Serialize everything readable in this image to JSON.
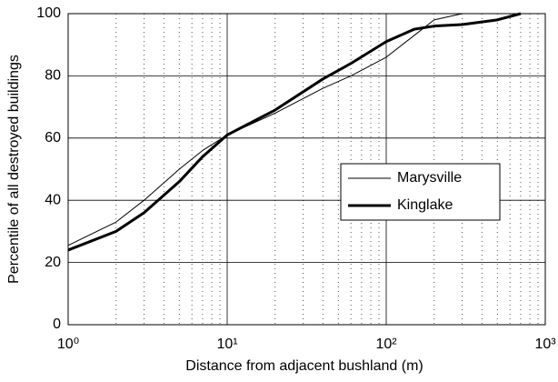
{
  "chart_data": {
    "type": "line",
    "xlabel": "Distance from adjacent bushland (m)",
    "ylabel": "Percentile of all destroyed buildings",
    "x": [
      1,
      2,
      3,
      5,
      7,
      10,
      20,
      40,
      60,
      100,
      150,
      200,
      300,
      500,
      700
    ],
    "series": [
      {
        "name": "Marysville",
        "color": "#000000",
        "line_width": 1,
        "values": [
          25.5,
          33,
          40,
          50,
          56,
          61,
          68,
          76,
          80,
          86,
          93,
          98,
          100,
          100,
          100
        ]
      },
      {
        "name": "Kinglake",
        "color": "#000000",
        "line_width": 3,
        "values": [
          24,
          30,
          36,
          46,
          54,
          61,
          69,
          79,
          84,
          91,
          95,
          96,
          96.5,
          98,
          100
        ]
      }
    ],
    "xscale": "log",
    "xlim": [
      1,
      1000
    ],
    "ylim": [
      0,
      100
    ],
    "xticks": [
      {
        "value": 1,
        "label": "10⁰"
      },
      {
        "value": 10,
        "label": "10¹"
      },
      {
        "value": 100,
        "label": "10²"
      },
      {
        "value": 1000,
        "label": "10³"
      }
    ],
    "yticks": [
      0,
      20,
      40,
      60,
      80,
      100
    ],
    "grid": true
  }
}
